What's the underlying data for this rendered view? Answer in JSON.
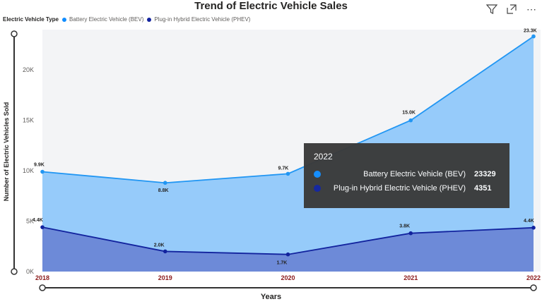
{
  "toolbar": {
    "filter_icon": "filter-icon",
    "focus_icon": "focus-mode-icon",
    "more_icon": "more-options-icon",
    "more_label": "⋯"
  },
  "legend": {
    "title": "Electric Vehicle Type",
    "items": [
      {
        "label": "Battery Electric Vehicle (BEV)",
        "color": "#118dff"
      },
      {
        "label": "Plug-in Hybrid Electric Vehicle (PHEV)",
        "color": "#12239e"
      }
    ]
  },
  "tooltip": {
    "header": "2022",
    "rows": [
      {
        "name": "Battery Electric Vehicle (BEV)",
        "value": "23329",
        "color": "#118dff"
      },
      {
        "name": "Plug-in Hybrid Electric Vehicle (PHEV)",
        "value": "4351",
        "color": "#12239e"
      }
    ]
  },
  "chart_data": {
    "type": "area",
    "title": "Trend of Electric Vehicle Sales",
    "xlabel": "Years",
    "ylabel": "Number of Electric Vehicles Sold",
    "categories": [
      "2018",
      "2019",
      "2020",
      "2021",
      "2022"
    ],
    "ylim": [
      0,
      24000
    ],
    "yticks": [
      0,
      5000,
      10000,
      15000,
      20000
    ],
    "ytick_labels": [
      "0K",
      "5K",
      "10K",
      "15K",
      "20K"
    ],
    "series": [
      {
        "name": "Battery Electric Vehicle (BEV)",
        "color": "#118dff",
        "values": [
          9900,
          8800,
          9700,
          15000,
          23329
        ],
        "labels": [
          "9.9K",
          "8.8K",
          "9.7K",
          "15.0K",
          "23.3K"
        ]
      },
      {
        "name": "Plug-in Hybrid Electric Vehicle (PHEV)",
        "color": "#12239e",
        "values": [
          4400,
          2000,
          1700,
          3800,
          4351
        ],
        "labels": [
          "4.4K",
          "2.0K",
          "1.7K",
          "3.8K",
          "4.4K"
        ]
      }
    ],
    "legend_position": "top-left",
    "grid": false
  }
}
